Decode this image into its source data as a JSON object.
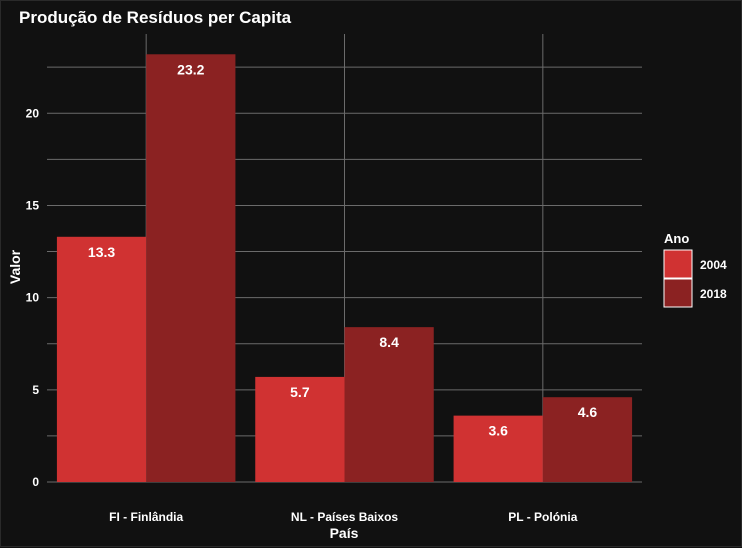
{
  "chart_data": {
    "type": "bar",
    "title": "Produção de Resíduos per Capita",
    "xlabel": "País",
    "ylabel": "Valor",
    "categories": [
      "FI - Finlândia",
      "NL - Países Baixos",
      "PL - Polónia"
    ],
    "series": [
      {
        "name": "2004",
        "values": [
          13.3,
          5.7,
          3.6
        ],
        "color": "#d03232"
      },
      {
        "name": "2018",
        "values": [
          23.2,
          8.4,
          4.6
        ],
        "color": "#8b2222"
      }
    ],
    "data_labels": [
      [
        "13.3",
        "5.7",
        "3.6"
      ],
      [
        "23.2",
        "8.4",
        "4.6"
      ]
    ],
    "ylim": [
      0,
      24.3
    ],
    "yticks": [
      0,
      5,
      10,
      15,
      20
    ],
    "ytick_labels": [
      "0",
      "5",
      "10",
      "15",
      "20"
    ],
    "legend": {
      "title": "Ano",
      "position": "right"
    },
    "grid": true,
    "colors": {
      "background": "#111111",
      "grid": "#6b6b6b",
      "text": "#ffffff"
    }
  }
}
